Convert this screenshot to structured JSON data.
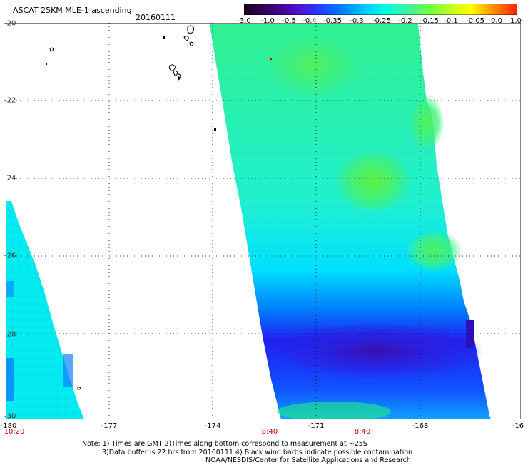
{
  "header": {
    "title": "ASCAT 25KM MLE-1 ascending",
    "date": "20160111"
  },
  "colorbar": {
    "labels": [
      "-3.0",
      "-1.0",
      "-0.5",
      "-0.4",
      "-0.35",
      "-0.3",
      "-0.25",
      "-0.2",
      "-0.15",
      "-0.1",
      "-0.05",
      "0.0",
      "1.0"
    ],
    "colors": [
      "#1a0020",
      "#3a0070",
      "#6010c0",
      "#2040ff",
      "#0080ff",
      "#00c8ff",
      "#00ffe0",
      "#40f0a0",
      "#80ff40",
      "#c0ff20",
      "#ffff00",
      "#ff9000",
      "#ff2000"
    ]
  },
  "map": {
    "lon_labels": [
      "-180",
      "-177",
      "-174",
      "-171",
      "-168",
      "-16"
    ],
    "lat_labels": [
      "-20",
      "-22",
      "-24",
      "-26",
      "-28",
      "-30"
    ],
    "time_labels": [
      "10:20",
      "8:40",
      "8:40"
    ]
  },
  "notes": {
    "line1": "Note: 1) Times are GMT 2)Times along bottom correspond to measurement at ~25S",
    "line2": "3)Data buffer is 22 hrs from 20160111 4) Black wind barbs indicate possible contamination",
    "line3": "NOAA/NESDIS/Center for Satellite Applications and Research"
  }
}
